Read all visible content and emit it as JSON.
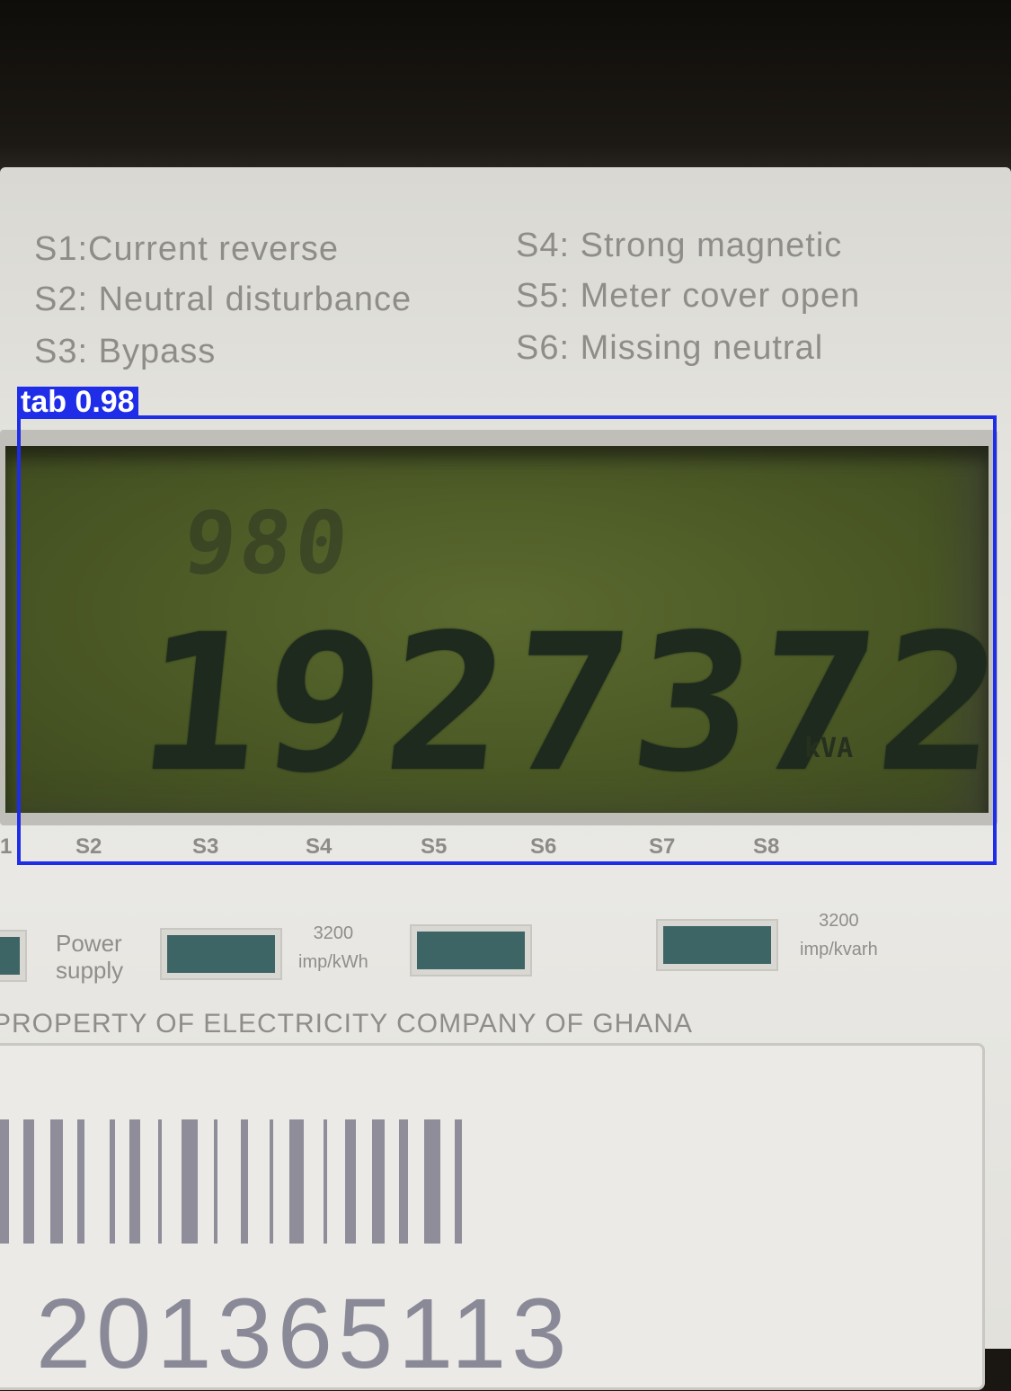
{
  "legend": {
    "s1": "S1:Current reverse",
    "s2": "S2: Neutral disturbance",
    "s3": "S3: Bypass",
    "s4": "S4: Strong magnetic",
    "s5": "S5: Meter cover open",
    "s6": "S6: Missing neutral"
  },
  "detection": {
    "label": "tab 0.98",
    "color": "#1f2de8"
  },
  "display": {
    "top_code": "980",
    "reading": "1927372",
    "unit": "kVA"
  },
  "status_labels": [
    "1",
    "S2",
    "S3",
    "S4",
    "S5",
    "S6",
    "S7",
    "S8"
  ],
  "indicators": {
    "power_label": "Power\nsupply",
    "kwh_rate": "3200\nimp/kWh",
    "kvarh_rate": "3200\nimp/kvarh"
  },
  "property_text": "PROPERTY OF ELECTRICITY COMPANY OF GHANA",
  "serial_number": "201365113"
}
